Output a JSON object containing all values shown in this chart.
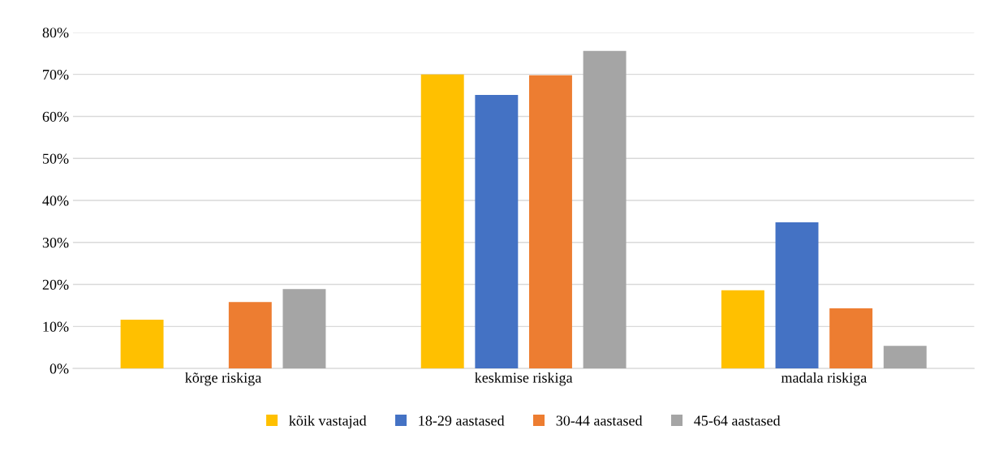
{
  "chart_data": {
    "type": "bar",
    "categories": [
      "kõrge riskiga",
      "keskmise riskiga",
      "madala riskiga"
    ],
    "series": [
      {
        "name": "kõik vastajad",
        "color": "#ffc000",
        "values": [
          11.6,
          70.0,
          18.6
        ]
      },
      {
        "name": "18-29 aastased",
        "color": "#4472c4",
        "values": [
          0,
          65.1,
          34.8
        ]
      },
      {
        "name": "30-44 aastased",
        "color": "#ed7d31",
        "values": [
          15.8,
          69.8,
          14.3
        ]
      },
      {
        "name": "45-64 aastased",
        "color": "#a5a5a5",
        "values": [
          18.9,
          75.6,
          5.4
        ]
      }
    ],
    "ylim": [
      0,
      80
    ],
    "yticks": [
      {
        "value": 0,
        "label": "0%"
      },
      {
        "value": 10,
        "label": "10%"
      },
      {
        "value": 20,
        "label": "20%"
      },
      {
        "value": 30,
        "label": "30%"
      },
      {
        "value": 40,
        "label": "40%"
      },
      {
        "value": 50,
        "label": "50%"
      },
      {
        "value": 60,
        "label": "60%"
      },
      {
        "value": 70,
        "label": "70%"
      },
      {
        "value": 80,
        "label": "80%"
      }
    ],
    "grid": "y",
    "legend": "bottom"
  }
}
